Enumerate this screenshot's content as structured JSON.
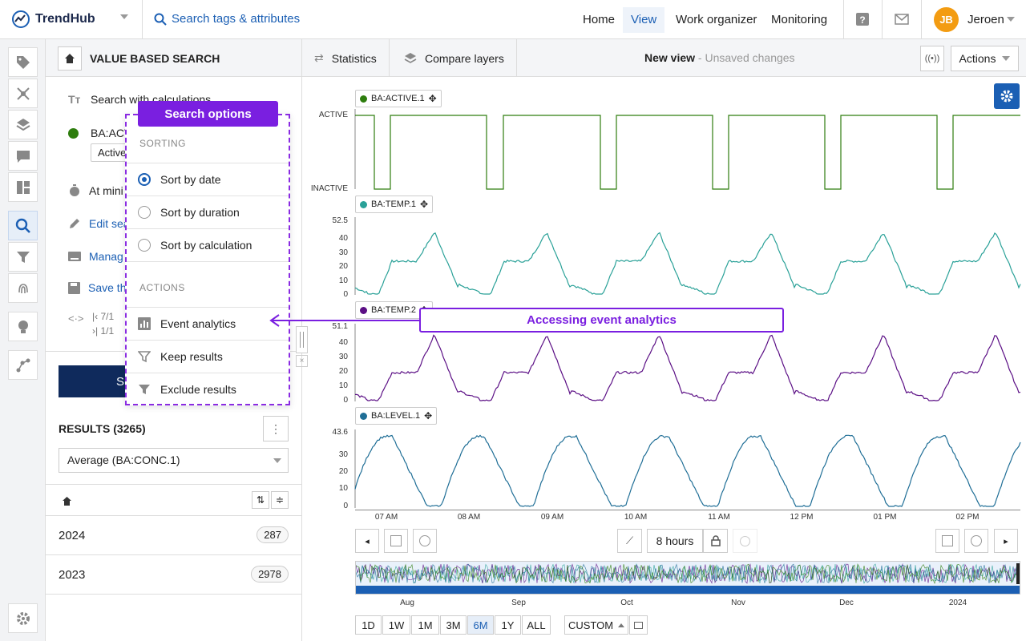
{
  "app": {
    "name": "TrendHub"
  },
  "top": {
    "search_placeholder": "Search tags & attributes",
    "nav": [
      "Home",
      "View",
      "Work organizer",
      "Monitoring"
    ],
    "active_nav": "View",
    "user_initials": "JB",
    "user_name": "Jeroen"
  },
  "left": {
    "title": "VALUE BASED SEARCH",
    "rows": {
      "calc": "Search with calculations",
      "tag": "BA:ACTIVE.1",
      "tag_value": "Active",
      "min": "At mini",
      "edit": "Edit sea",
      "manage": "Manag",
      "save": "Save th",
      "range1": "7/1",
      "range2": "1/1"
    },
    "submit_label": "Su",
    "results_label": "RESULTS (3265)",
    "select_value": "Average (BA:CONC.1)",
    "years": [
      {
        "year": "2024",
        "count": "287"
      },
      {
        "year": "2023",
        "count": "2978"
      }
    ]
  },
  "popover": {
    "label": "Search options",
    "sorting_title": "SORTING",
    "sort_options": [
      "Sort by date",
      "Sort by duration",
      "Sort by calculation"
    ],
    "selected_sort": "Sort by date",
    "actions_title": "ACTIONS",
    "actions": [
      "Event analytics",
      "Keep results",
      "Exclude results"
    ]
  },
  "callout": "Accessing event analytics",
  "view": {
    "statistics": "Statistics",
    "compare": "Compare layers",
    "title": "New view",
    "subtitle": "- Unsaved changes",
    "actions": "Actions"
  },
  "colors": {
    "brand": "#1b5fb4",
    "purple": "#7a1fe0",
    "active": "#2e7d0e",
    "temp1": "#2aa198",
    "temp2": "#5b0f85",
    "level": "#1f6e96"
  },
  "chart_data": [
    {
      "type": "line",
      "series": [
        {
          "name": "BA:ACTIVE.1"
        }
      ],
      "y_ticks": [
        "ACTIVE",
        "INACTIVE"
      ]
    },
    {
      "type": "line",
      "series": [
        {
          "name": "BA:TEMP.1"
        }
      ],
      "y_ticks": [
        "52.5",
        "40",
        "30",
        "20",
        "10",
        "0"
      ],
      "ylim": [
        0,
        52.5
      ]
    },
    {
      "type": "line",
      "series": [
        {
          "name": "BA:TEMP.2"
        }
      ],
      "y_ticks": [
        "51.1",
        "40",
        "30",
        "20",
        "10",
        "0"
      ],
      "ylim": [
        0,
        51.1
      ]
    },
    {
      "type": "line",
      "series": [
        {
          "name": "BA:LEVEL.1"
        }
      ],
      "y_ticks": [
        "43.6",
        "30",
        "20",
        "10",
        "0"
      ],
      "ylim": [
        0,
        43.6
      ]
    }
  ],
  "x_ticks": [
    "07 AM",
    "08 AM",
    "09 AM",
    "10 AM",
    "11 AM",
    "12 PM",
    "01 PM",
    "02 PM"
  ],
  "timeline": {
    "duration": "8 hours",
    "nav_months": [
      "Aug",
      "Sep",
      "Oct",
      "Nov",
      "Dec",
      "2024"
    ],
    "ranges": [
      "1D",
      "1W",
      "1M",
      "3M",
      "6M",
      "1Y",
      "ALL"
    ],
    "active_range": "6M",
    "custom": "CUSTOM"
  }
}
